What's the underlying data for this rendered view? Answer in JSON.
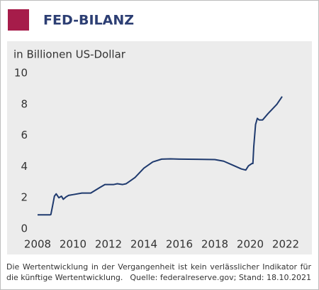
{
  "chart_data": {
    "type": "line",
    "title": "FED-BILANZ",
    "y_label": "in Billionen US-Dollar",
    "note": "Die Wertentwicklung in der Vergangenheit ist kein verlässlicher Indikator für die künftige Wertentwicklung.",
    "source": "Quelle: federalreserve.gov; Stand: 18.10.2021",
    "x": [
      2008.0,
      2008.7,
      2008.75,
      2008.85,
      2008.95,
      2009.05,
      2009.2,
      2009.35,
      2009.45,
      2009.6,
      2009.75,
      2010.0,
      2010.5,
      2011.0,
      2011.5,
      2011.8,
      2012.3,
      2012.5,
      2012.8,
      2013.0,
      2013.5,
      2014.0,
      2014.5,
      2015.0,
      2015.5,
      2016.0,
      2017.0,
      2018.0,
      2018.5,
      2019.0,
      2019.5,
      2019.75,
      2019.9,
      2020.1,
      2020.15,
      2020.2,
      2020.3,
      2020.4,
      2020.5,
      2020.7,
      2021.0,
      2021.5,
      2021.8
    ],
    "series": [
      {
        "color": "#1f3a6e",
        "values": [
          0.9,
          0.9,
          0.92,
          1.5,
          2.1,
          2.25,
          2.0,
          2.1,
          1.9,
          2.05,
          2.15,
          2.2,
          2.3,
          2.3,
          2.65,
          2.85,
          2.85,
          2.9,
          2.85,
          2.9,
          3.3,
          3.9,
          4.3,
          4.48,
          4.5,
          4.48,
          4.47,
          4.45,
          4.35,
          4.1,
          3.85,
          3.78,
          4.05,
          4.2,
          4.2,
          5.3,
          6.7,
          7.1,
          7.0,
          7.0,
          7.4,
          8.0,
          8.5
        ]
      }
    ],
    "xlim": [
      2007.9,
      2022.5
    ],
    "xticks": [
      2008,
      2010,
      2012,
      2014,
      2016,
      2018,
      2020,
      2022
    ],
    "ylim": [
      0,
      10
    ],
    "yticks": [
      0,
      2,
      4,
      6,
      8,
      10
    ],
    "title_color": "#2c3e73",
    "marker_color": "#a61c4a",
    "panel_color": "#ececec"
  }
}
